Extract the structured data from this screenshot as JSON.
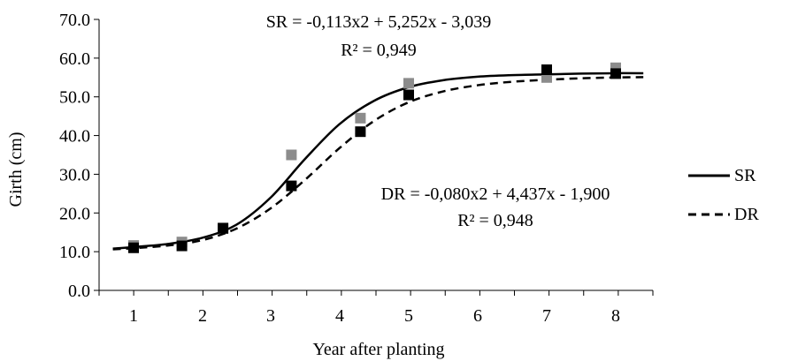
{
  "chart_data": {
    "type": "line",
    "xlabel": "Year after planting",
    "ylabel": "Girth (cm)",
    "ylim": [
      0,
      70
    ],
    "y_ticks": [
      "0.0",
      "10.0",
      "20.0",
      "30.0",
      "40.0",
      "50.0",
      "60.0",
      "70.0"
    ],
    "x_tick_labels": [
      "1",
      "2",
      "3",
      "4",
      "5",
      "6",
      "7",
      "8"
    ],
    "legend_position": "right",
    "grid": false,
    "series": [
      {
        "name": "SR",
        "line_style": "solid",
        "line_color": "#000000",
        "marker_color": "#8c8c8c",
        "points": [
          {
            "x": 1,
            "y": 11.6
          },
          {
            "x": 1.7,
            "y": 12.5
          },
          {
            "x": 2.3,
            "y": 16.2
          },
          {
            "x": 3.3,
            "y": 35.0
          },
          {
            "x": 4.3,
            "y": 44.5
          },
          {
            "x": 5,
            "y": 53.5
          },
          {
            "x": 7,
            "y": 55.0
          },
          {
            "x": 8,
            "y": 57.5
          }
        ],
        "fit_curve": [
          {
            "x": 0.7,
            "y": 10.8
          },
          {
            "x": 1.0,
            "y": 11.2
          },
          {
            "x": 1.5,
            "y": 12.0
          },
          {
            "x": 2.0,
            "y": 13.6
          },
          {
            "x": 2.5,
            "y": 17.0
          },
          {
            "x": 3.0,
            "y": 24.0
          },
          {
            "x": 3.5,
            "y": 34.0
          },
          {
            "x": 4.0,
            "y": 43.0
          },
          {
            "x": 4.5,
            "y": 49.0
          },
          {
            "x": 5.0,
            "y": 52.5
          },
          {
            "x": 5.5,
            "y": 54.3
          },
          {
            "x": 6.0,
            "y": 55.2
          },
          {
            "x": 6.5,
            "y": 55.6
          },
          {
            "x": 7.0,
            "y": 55.8
          },
          {
            "x": 7.5,
            "y": 56.0
          },
          {
            "x": 8.0,
            "y": 56.1
          },
          {
            "x": 8.4,
            "y": 56.1
          }
        ],
        "equation": "SR = -0,113x2 + 5,252x - 3,039",
        "r2": "R² = 0,949"
      },
      {
        "name": "DR",
        "line_style": "dashed",
        "line_color": "#000000",
        "marker_color": "#000000",
        "points": [
          {
            "x": 1,
            "y": 11.0
          },
          {
            "x": 1.7,
            "y": 11.5
          },
          {
            "x": 2.3,
            "y": 16.0
          },
          {
            "x": 3.3,
            "y": 27.0
          },
          {
            "x": 4.3,
            "y": 41.0
          },
          {
            "x": 5,
            "y": 50.5
          },
          {
            "x": 7,
            "y": 57.0
          },
          {
            "x": 8,
            "y": 56.0
          }
        ],
        "fit_curve": [
          {
            "x": 0.7,
            "y": 10.6
          },
          {
            "x": 1.0,
            "y": 10.9
          },
          {
            "x": 1.5,
            "y": 11.6
          },
          {
            "x": 2.0,
            "y": 13.0
          },
          {
            "x": 2.5,
            "y": 16.0
          },
          {
            "x": 3.0,
            "y": 21.2
          },
          {
            "x": 3.5,
            "y": 28.6
          },
          {
            "x": 4.0,
            "y": 36.8
          },
          {
            "x": 4.5,
            "y": 43.8
          },
          {
            "x": 5.0,
            "y": 48.6
          },
          {
            "x": 5.5,
            "y": 51.4
          },
          {
            "x": 6.0,
            "y": 53.0
          },
          {
            "x": 6.5,
            "y": 53.9
          },
          {
            "x": 7.0,
            "y": 54.4
          },
          {
            "x": 7.5,
            "y": 54.8
          },
          {
            "x": 8.0,
            "y": 55.0
          },
          {
            "x": 8.4,
            "y": 55.1
          }
        ],
        "equation": "DR = -0,080x2 + 4,437x - 1,900",
        "r2": "R² = 0,948"
      }
    ]
  }
}
